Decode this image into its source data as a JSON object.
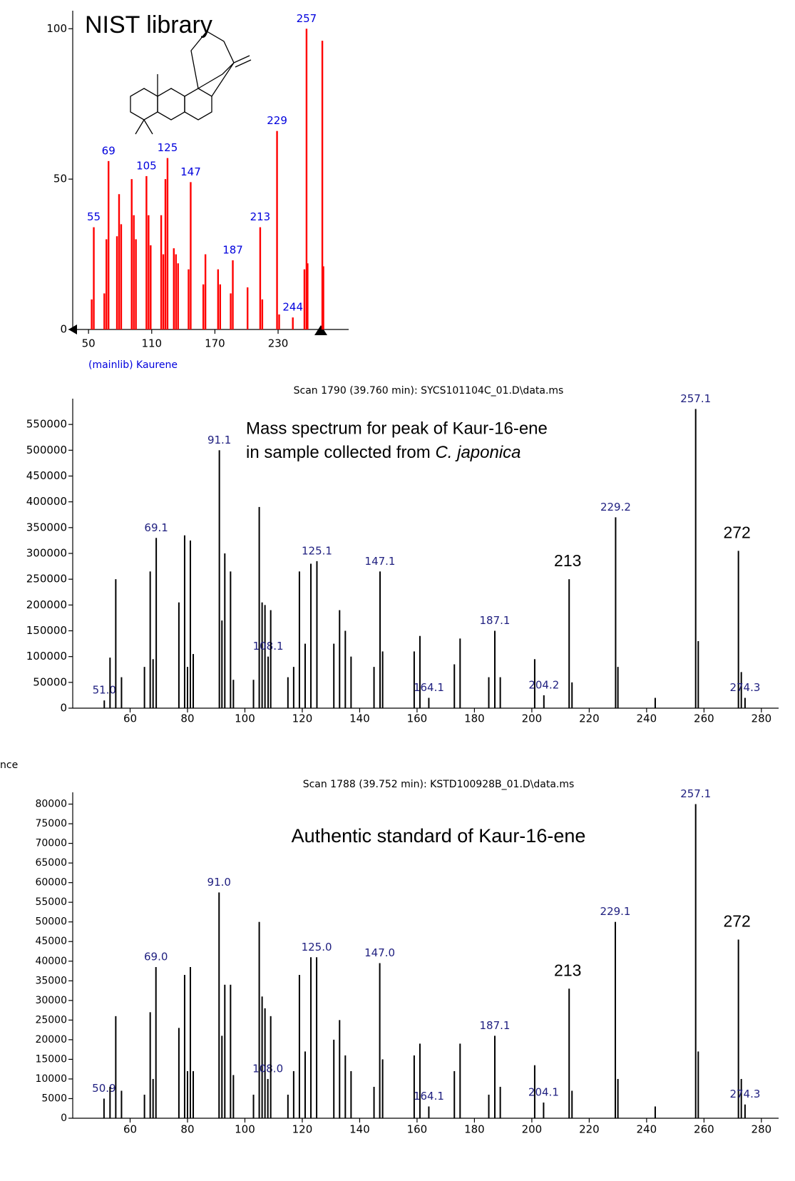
{
  "chart_data": [
    {
      "type": "bar",
      "title": "NIST library",
      "x_label": "(mainlib) Kaurene",
      "color": "#ff0000",
      "label_color": "#0000dd",
      "xlim": [
        35,
        297
      ],
      "xticks": [
        50,
        110,
        170,
        230
      ],
      "ylim": [
        0,
        106
      ],
      "yticks": [
        0,
        50,
        100
      ],
      "x": [
        53,
        55,
        65,
        67,
        69,
        77,
        79,
        81,
        91,
        93,
        95,
        105,
        107,
        109,
        119,
        121,
        123,
        125,
        131,
        133,
        135,
        145,
        147,
        159,
        161,
        173,
        175,
        185,
        187,
        201,
        213,
        215,
        229,
        231,
        244,
        255,
        257,
        258,
        272,
        273
      ],
      "values": [
        10,
        34,
        12,
        30,
        56,
        31,
        45,
        35,
        50,
        38,
        30,
        51,
        38,
        28,
        38,
        25,
        50,
        57,
        27,
        25,
        22,
        20,
        49,
        15,
        25,
        20,
        15,
        12,
        23,
        14,
        34,
        10,
        66,
        5,
        4,
        20,
        100,
        22,
        96,
        21
      ],
      "x_labels": [
        null,
        "55",
        null,
        null,
        "69",
        null,
        null,
        null,
        null,
        null,
        null,
        "105",
        null,
        null,
        null,
        null,
        null,
        "125",
        null,
        null,
        null,
        null,
        "147",
        null,
        null,
        null,
        null,
        null,
        "187",
        null,
        "213",
        null,
        "229",
        null,
        "244",
        null,
        "257",
        null,
        null,
        null
      ]
    },
    {
      "type": "bar",
      "title": "Scan 1790 (39.760 min): SYCS101104C_01.D\\data.ms",
      "note": [
        "Mass spectrum for peak of Kaur-16-ene",
        "in sample collected from ",
        "C. japonica"
      ],
      "color": "#000000",
      "label_color": "#202080",
      "xlim": [
        40,
        286
      ],
      "xticks": [
        60,
        80,
        100,
        120,
        140,
        160,
        180,
        200,
        220,
        240,
        260,
        280
      ],
      "ylim": [
        0,
        600000
      ],
      "yticks": [
        0,
        50000,
        100000,
        150000,
        200000,
        250000,
        300000,
        350000,
        400000,
        450000,
        500000,
        550000
      ],
      "x": [
        51,
        53,
        55,
        57,
        65,
        67,
        68,
        69.1,
        77,
        79,
        80,
        81,
        82,
        91.1,
        92,
        93,
        95,
        96,
        103,
        105,
        106,
        107,
        108.1,
        109,
        115,
        117,
        119,
        121,
        123,
        125.1,
        131,
        133,
        135,
        137,
        145,
        147.1,
        148,
        159,
        161,
        164.1,
        173,
        175,
        185,
        187.1,
        189,
        201,
        204.2,
        213,
        214,
        229.2,
        230,
        243,
        257.1,
        258,
        272,
        273,
        274.3
      ],
      "values": [
        15000,
        98000,
        250000,
        60000,
        80000,
        265000,
        95000,
        330000,
        205000,
        335000,
        80000,
        325000,
        105000,
        500000,
        170000,
        300000,
        265000,
        55000,
        55000,
        390000,
        205000,
        200000,
        100000,
        190000,
        60000,
        80000,
        265000,
        125000,
        280000,
        285000,
        125000,
        190000,
        150000,
        100000,
        80000,
        265000,
        110000,
        110000,
        140000,
        20000,
        85000,
        135000,
        60000,
        150000,
        60000,
        95000,
        25000,
        250000,
        50000,
        370000,
        80000,
        20000,
        580000,
        130000,
        305000,
        70000,
        20000
      ],
      "x_labels": [
        "51.0",
        null,
        null,
        null,
        null,
        null,
        null,
        "69.1",
        null,
        null,
        null,
        null,
        null,
        "91.1",
        null,
        null,
        null,
        null,
        null,
        null,
        null,
        null,
        "108.1",
        null,
        null,
        null,
        null,
        null,
        null,
        "125.1",
        null,
        null,
        null,
        null,
        null,
        "147.1",
        null,
        null,
        null,
        "164.1",
        null,
        null,
        null,
        "187.1",
        null,
        null,
        "204.2",
        null,
        null,
        "229.2",
        null,
        null,
        "257.1",
        null,
        null,
        null,
        "274.3"
      ],
      "annotations": [
        {
          "text": "213",
          "x": 213
        },
        {
          "text": "272",
          "x": 272
        }
      ]
    },
    {
      "type": "bar",
      "title": "Scan 1788 (39.752 min): KSTD100928B_01.D\\data.ms",
      "y_label": "nce",
      "note": [
        "Authentic standard of Kaur-16-ene"
      ],
      "color": "#000000",
      "label_color": "#202080",
      "xlim": [
        40,
        286
      ],
      "xticks": [
        60,
        80,
        100,
        120,
        140,
        160,
        180,
        200,
        220,
        240,
        260,
        280
      ],
      "ylim": [
        0,
        83000
      ],
      "yticks": [
        0,
        5000,
        10000,
        15000,
        20000,
        25000,
        30000,
        35000,
        40000,
        45000,
        50000,
        55000,
        60000,
        65000,
        70000,
        75000,
        80000
      ],
      "x": [
        50.9,
        53,
        55,
        57,
        65,
        67,
        68,
        69.0,
        77,
        79,
        80,
        81,
        82,
        91.0,
        92,
        93,
        95,
        96,
        103,
        105,
        106,
        107,
        108.0,
        109,
        115,
        117,
        119,
        121,
        123,
        125.0,
        131,
        133,
        135,
        137,
        145,
        147.0,
        148,
        159,
        161,
        164.1,
        173,
        175,
        185,
        187.1,
        189,
        201,
        204.1,
        213,
        214,
        229.1,
        230,
        243,
        257.1,
        258,
        272,
        273,
        274.3
      ],
      "values": [
        5000,
        8000,
        26000,
        7000,
        6000,
        27000,
        10000,
        38500,
        23000,
        36500,
        12000,
        38500,
        12000,
        57500,
        21000,
        34000,
        34000,
        11000,
        6000,
        50000,
        31000,
        28000,
        10000,
        26000,
        6000,
        12000,
        36500,
        17000,
        41000,
        41000,
        20000,
        25000,
        16000,
        12000,
        8000,
        39500,
        15000,
        16000,
        19000,
        3000,
        12000,
        19000,
        6000,
        21000,
        8000,
        13500,
        4000,
        33000,
        7000,
        50000,
        10000,
        3000,
        80000,
        17000,
        45500,
        10000,
        3500
      ],
      "x_labels": [
        "50.9",
        null,
        null,
        null,
        null,
        null,
        null,
        "69.0",
        null,
        null,
        null,
        null,
        null,
        "91.0",
        null,
        null,
        null,
        null,
        null,
        null,
        null,
        null,
        "108.0",
        null,
        null,
        null,
        null,
        null,
        null,
        "125.0",
        null,
        null,
        null,
        null,
        null,
        "147.0",
        null,
        null,
        null,
        "164.1",
        null,
        null,
        null,
        "187.1",
        null,
        null,
        "204.1",
        null,
        null,
        "229.1",
        null,
        null,
        "257.1",
        null,
        null,
        null,
        "274.3"
      ],
      "annotations": [
        {
          "text": "213",
          "x": 213
        },
        {
          "text": "272",
          "x": 272
        }
      ]
    }
  ]
}
